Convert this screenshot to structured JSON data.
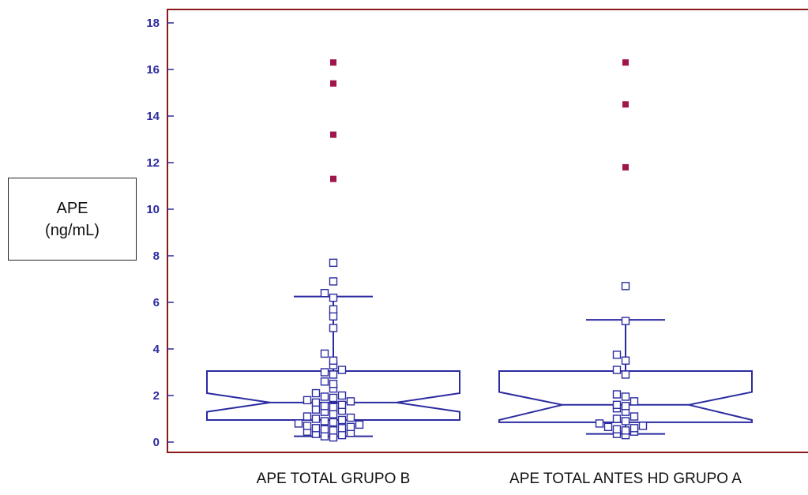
{
  "chart_data": {
    "type": "boxplot",
    "ylabel_lines": [
      "APE",
      "(ng/mL)"
    ],
    "ylim": [
      0,
      18
    ],
    "yticks": [
      0,
      2,
      4,
      6,
      8,
      10,
      12,
      14,
      16,
      18
    ],
    "grid": false,
    "colors": {
      "frame": "#8b1a1a",
      "box": "#2b2ba0",
      "outlier": "#a0154b",
      "tick_label": "#2b2ba0"
    },
    "groups": [
      {
        "name": "APE TOTAL GRUPO B",
        "whisker_low": 0.25,
        "q1": 0.95,
        "median": 1.7,
        "q3": 3.05,
        "whisker_high": 6.25,
        "notch_low": 1.3,
        "notch_high": 2.1,
        "points": [
          0.2,
          0.25,
          0.3,
          0.35,
          0.4,
          0.45,
          0.5,
          0.55,
          0.6,
          0.6,
          0.65,
          0.7,
          0.75,
          0.8,
          0.85,
          0.9,
          0.95,
          1.0,
          1.05,
          1.1,
          1.2,
          1.3,
          1.35,
          1.4,
          1.5,
          1.55,
          1.6,
          1.7,
          1.75,
          1.8,
          1.9,
          1.95,
          2.0,
          2.1,
          2.3,
          2.5,
          2.6,
          2.9,
          3.0,
          3.1,
          3.3,
          3.5,
          3.8,
          4.9,
          5.4,
          5.7,
          6.2,
          6.4,
          6.9,
          7.7
        ],
        "far_outliers": [
          11.3,
          13.2,
          15.4,
          16.3
        ]
      },
      {
        "name": "APE TOTAL ANTES HD GRUPO A",
        "whisker_low": 0.35,
        "q1": 0.85,
        "median": 1.6,
        "q3": 3.05,
        "whisker_high": 5.25,
        "notch_low": 0.95,
        "notch_high": 2.15,
        "points": [
          0.3,
          0.35,
          0.45,
          0.5,
          0.55,
          0.6,
          0.65,
          0.7,
          0.8,
          0.9,
          1.0,
          1.1,
          1.3,
          1.45,
          1.55,
          1.6,
          1.75,
          1.95,
          2.05,
          2.9,
          3.1,
          3.5,
          3.75,
          5.2,
          6.7
        ],
        "far_outliers": [
          11.8,
          14.5,
          16.3
        ]
      }
    ]
  }
}
